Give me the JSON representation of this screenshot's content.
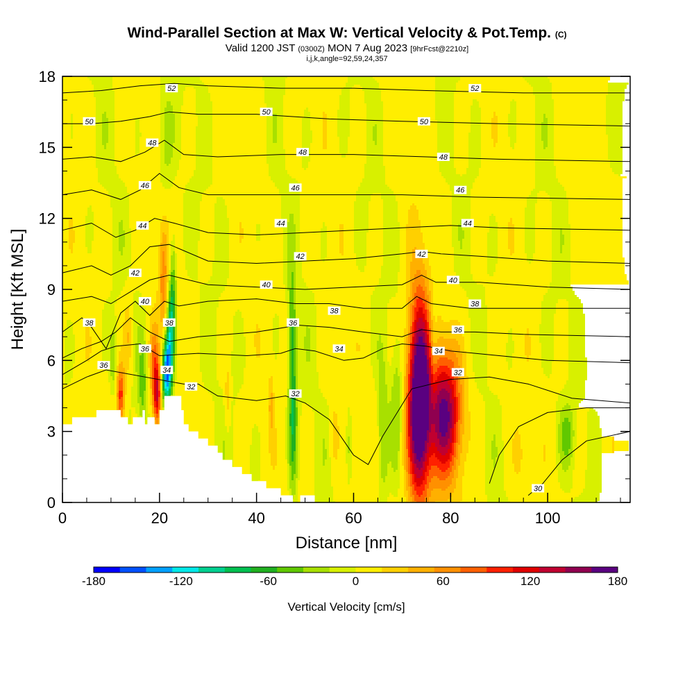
{
  "title": {
    "main": "Wind-Parallel Section at Max W: Vertical Velocity & Pot.Temp.",
    "main_mark": "(C)",
    "valid_prefix": "Valid 1200 JST",
    "valid_utc": "(0300Z)",
    "valid_date": "MON 7 Aug 2023",
    "forecast": "[9hrFcst@2210z]",
    "indices": "i,j,k,angle=92,59,24,357"
  },
  "colors": {
    "neg_deep": "#0000ff",
    "zero_band": "#ffee00",
    "pos_deep": "#5a0080",
    "terrain": "#ffffff",
    "contour": "#000000"
  },
  "chart_data": {
    "type": "heatmap",
    "xlabel": "Distance [nm]",
    "ylabel": "Height [Kft MSL]",
    "xlim": [
      0,
      117
    ],
    "ylim": [
      0,
      18
    ],
    "x_ticks": [
      0,
      20,
      40,
      60,
      80,
      100
    ],
    "y_ticks": [
      0,
      3,
      6,
      9,
      12,
      15,
      18
    ],
    "colorbar": {
      "title": "Vertical Velocity [cm/s]",
      "range": [
        -180,
        180
      ],
      "tick_labels": [
        "-180",
        "-120",
        "-60",
        "0",
        "60",
        "120",
        "180"
      ],
      "tick_values": [
        -180,
        -120,
        -60,
        0,
        60,
        120,
        180
      ],
      "colors": [
        "#0000ff",
        "#0050ff",
        "#00a0ff",
        "#00e8e8",
        "#00d090",
        "#00c050",
        "#20b020",
        "#60c800",
        "#a8e000",
        "#d8f000",
        "#ffee00",
        "#ffd000",
        "#ffb000",
        "#ff9000",
        "#ff6000",
        "#ff2000",
        "#e00000",
        "#c00030",
        "#900050",
        "#5a0080"
      ]
    },
    "w_features": [
      {
        "x": 73.5,
        "z": 4.5,
        "sx": 1.6,
        "sz": 3.2,
        "w": 185
      },
      {
        "x": 79,
        "z": 3.8,
        "sx": 2.2,
        "sz": 1.8,
        "w": 120
      },
      {
        "x": 75.5,
        "z": 3.5,
        "sx": 4.5,
        "sz": 2.4,
        "w": 55
      },
      {
        "x": 69,
        "z": 4.0,
        "sx": 1.0,
        "sz": 2.0,
        "w": -45
      },
      {
        "x": 66,
        "z": 3.0,
        "sx": 0.8,
        "sz": 2.2,
        "w": -40
      },
      {
        "x": 76.5,
        "z": 6.5,
        "sx": 0.6,
        "sz": 1.5,
        "w": -35
      },
      {
        "x": 21.5,
        "z": 5.5,
        "sx": 0.7,
        "sz": 1.0,
        "w": -150
      },
      {
        "x": 22.3,
        "z": 7.3,
        "sx": 0.6,
        "sz": 1.3,
        "w": -85
      },
      {
        "x": 22.8,
        "z": 9.5,
        "sx": 0.5,
        "sz": 1.5,
        "w": -45
      },
      {
        "x": 20.8,
        "z": 9.5,
        "sx": 0.7,
        "sz": 1.8,
        "w": 60
      },
      {
        "x": 19.5,
        "z": 4.5,
        "sx": 0.6,
        "sz": 1.0,
        "w": 120
      },
      {
        "x": 18.8,
        "z": 6.0,
        "sx": 0.7,
        "sz": 1.2,
        "w": 60
      },
      {
        "x": 16.5,
        "z": 5.0,
        "sx": 0.6,
        "sz": 1.2,
        "w": -40
      },
      {
        "x": 12,
        "z": 4.5,
        "sx": 0.6,
        "sz": 0.9,
        "w": 100
      },
      {
        "x": 13.5,
        "z": 7.0,
        "sx": 0.7,
        "sz": 1.2,
        "w": 40
      },
      {
        "x": 10.5,
        "z": 6.0,
        "sx": 0.5,
        "sz": 1.0,
        "w": -30
      },
      {
        "x": 47.5,
        "z": 4.0,
        "sx": 0.6,
        "sz": 2.5,
        "w": -70
      },
      {
        "x": 47.3,
        "z": 8.0,
        "sx": 0.5,
        "sz": 1.5,
        "w": -35
      },
      {
        "x": 43,
        "z": 4.2,
        "sx": 0.4,
        "sz": 1.0,
        "w": 35
      },
      {
        "x": 34,
        "z": 4.5,
        "sx": 0.4,
        "sz": 1.0,
        "w": 35
      },
      {
        "x": 56,
        "z": 2.8,
        "sx": 0.6,
        "sz": 1.0,
        "w": 30
      },
      {
        "x": 59,
        "z": 2.5,
        "sx": 0.5,
        "sz": 1.2,
        "w": -28
      },
      {
        "x": 104,
        "z": 2.8,
        "sx": 1.0,
        "sz": 0.8,
        "w": -40
      },
      {
        "x": 94,
        "z": 2.0,
        "sx": 0.8,
        "sz": 0.8,
        "w": 25
      },
      {
        "x": 21,
        "z": 15,
        "sx": 1.2,
        "sz": 2.0,
        "w": -25
      }
    ],
    "terrain_steps": [
      [
        0,
        3.3
      ],
      [
        2,
        3.6
      ],
      [
        7,
        3.9
      ],
      [
        11,
        3.9
      ],
      [
        12,
        3.6
      ],
      [
        13,
        3.6
      ],
      [
        13.5,
        3.3
      ],
      [
        14.5,
        3.6
      ],
      [
        15.5,
        3.6
      ],
      [
        16.5,
        3.9
      ],
      [
        17,
        3.3
      ],
      [
        17.5,
        3.6
      ],
      [
        18.5,
        3.6
      ],
      [
        19,
        3.3
      ],
      [
        20,
        3.9
      ],
      [
        21,
        4.5
      ],
      [
        23.5,
        4.5
      ],
      [
        24.5,
        3.9
      ],
      [
        25,
        3.3
      ],
      [
        26,
        3.0
      ],
      [
        27,
        3.0
      ],
      [
        28,
        2.7
      ],
      [
        29,
        2.7
      ],
      [
        30,
        2.4
      ],
      [
        32,
        2.1
      ],
      [
        33,
        1.8
      ],
      [
        34,
        1.8
      ],
      [
        35,
        1.5
      ],
      [
        37,
        1.2
      ],
      [
        38,
        1.2
      ],
      [
        39,
        0.9
      ],
      [
        42,
        0.6
      ],
      [
        45,
        0.3
      ],
      [
        47,
        0.3
      ],
      [
        47.5,
        0
      ],
      [
        49,
        0.3
      ],
      [
        52,
        0
      ],
      [
        115,
        0
      ],
      [
        117,
        0.3
      ]
    ],
    "contours": [
      {
        "label": "30",
        "points": [
          [
            88,
            0.8
          ],
          [
            90,
            2.0
          ],
          [
            94,
            3.2
          ],
          [
            100,
            3.8
          ],
          [
            108,
            4.0
          ],
          [
            117,
            4.0
          ]
        ]
      },
      {
        "label": "30",
        "points": [
          [
            96,
            0.3
          ],
          [
            99,
            0.8
          ],
          [
            103,
            1.8
          ],
          [
            108,
            2.6
          ],
          [
            117,
            3.0
          ]
        ]
      },
      {
        "label": "32",
        "points": [
          [
            0,
            4.8
          ],
          [
            5,
            5.3
          ],
          [
            9,
            5.6
          ],
          [
            25,
            5.0
          ],
          [
            28,
            5.0
          ],
          [
            32,
            4.5
          ],
          [
            40,
            4.3
          ],
          [
            46,
            4.5
          ],
          [
            50,
            4.2
          ],
          [
            55,
            3.5
          ],
          [
            60,
            2.0
          ],
          [
            63,
            1.6
          ],
          [
            66,
            2.8
          ],
          [
            72,
            4.8
          ],
          [
            80,
            5.2
          ],
          [
            88,
            5.3
          ],
          [
            96,
            5.0
          ],
          [
            105,
            4.4
          ],
          [
            117,
            4.2
          ]
        ]
      },
      {
        "label": "34",
        "points": [
          [
            0,
            5.4
          ],
          [
            5,
            6.0
          ],
          [
            8,
            6.4
          ],
          [
            11,
            6.6
          ],
          [
            16,
            6.7
          ],
          [
            20,
            6.2
          ],
          [
            28,
            6.3
          ],
          [
            38,
            6.2
          ],
          [
            45,
            6.3
          ],
          [
            48,
            6.5
          ],
          [
            52,
            6.4
          ],
          [
            58,
            6.0
          ],
          [
            62,
            6.1
          ],
          [
            66,
            6.5
          ],
          [
            70,
            6.7
          ],
          [
            75,
            6.6
          ],
          [
            80,
            6.4
          ],
          [
            90,
            6.2
          ],
          [
            100,
            6.0
          ],
          [
            117,
            5.9
          ]
        ]
      },
      {
        "label": "36",
        "points": [
          [
            0,
            6.1
          ],
          [
            4,
            6.5
          ],
          [
            8,
            6.8
          ],
          [
            11,
            7.2
          ],
          [
            14,
            7.8
          ],
          [
            18,
            7.2
          ],
          [
            22,
            6.8
          ],
          [
            28,
            7.0
          ],
          [
            40,
            7.2
          ],
          [
            46,
            7.4
          ],
          [
            48,
            7.5
          ],
          [
            55,
            7.4
          ],
          [
            62,
            7.2
          ],
          [
            70,
            7.0
          ],
          [
            74,
            7.3
          ],
          [
            78,
            7.2
          ],
          [
            85,
            7.2
          ],
          [
            95,
            7.1
          ],
          [
            117,
            7.0
          ]
        ]
      },
      {
        "label": "38",
        "points": [
          [
            0,
            7.2
          ],
          [
            4,
            7.8
          ],
          [
            6,
            7.4
          ],
          [
            9,
            6.5
          ],
          [
            12,
            8.0
          ],
          [
            15,
            8.5
          ],
          [
            18,
            7.9
          ],
          [
            21,
            8.5
          ],
          [
            24,
            8.3
          ],
          [
            30,
            8.5
          ],
          [
            40,
            8.6
          ],
          [
            48,
            8.4
          ],
          [
            55,
            8.4
          ],
          [
            62,
            8.2
          ],
          [
            70,
            8.2
          ],
          [
            73,
            8.7
          ],
          [
            76,
            8.4
          ],
          [
            84,
            8.2
          ],
          [
            95,
            8.2
          ],
          [
            117,
            8.2
          ]
        ]
      },
      {
        "label": "40",
        "points": [
          [
            0,
            8.5
          ],
          [
            6,
            8.7
          ],
          [
            10,
            8.4
          ],
          [
            14,
            8.9
          ],
          [
            18,
            9.4
          ],
          [
            22,
            9.6
          ],
          [
            30,
            9.2
          ],
          [
            40,
            9.1
          ],
          [
            50,
            9.0
          ],
          [
            60,
            9.1
          ],
          [
            70,
            9.2
          ],
          [
            74,
            9.6
          ],
          [
            77,
            9.3
          ],
          [
            86,
            9.3
          ],
          [
            100,
            9.1
          ],
          [
            117,
            9.0
          ]
        ]
      },
      {
        "label": "42",
        "points": [
          [
            0,
            9.7
          ],
          [
            6,
            10.0
          ],
          [
            10,
            9.6
          ],
          [
            14,
            10.0
          ],
          [
            18,
            10.8
          ],
          [
            22,
            10.9
          ],
          [
            30,
            10.2
          ],
          [
            40,
            10.1
          ],
          [
            50,
            10.2
          ],
          [
            60,
            10.3
          ],
          [
            70,
            10.5
          ],
          [
            74,
            10.6
          ],
          [
            78,
            10.5
          ],
          [
            86,
            10.4
          ],
          [
            100,
            10.2
          ],
          [
            117,
            10.1
          ]
        ]
      },
      {
        "label": "44",
        "points": [
          [
            0,
            11.5
          ],
          [
            6,
            11.8
          ],
          [
            11,
            11.2
          ],
          [
            15,
            11.5
          ],
          [
            19,
            12.0
          ],
          [
            23,
            11.8
          ],
          [
            30,
            11.4
          ],
          [
            40,
            11.3
          ],
          [
            50,
            11.4
          ],
          [
            60,
            11.5
          ],
          [
            70,
            11.6
          ],
          [
            80,
            11.7
          ],
          [
            90,
            11.6
          ],
          [
            117,
            11.5
          ]
        ]
      },
      {
        "label": "46",
        "points": [
          [
            0,
            13.0
          ],
          [
            6,
            13.2
          ],
          [
            12,
            12.8
          ],
          [
            16,
            13.2
          ],
          [
            20,
            13.9
          ],
          [
            24,
            13.3
          ],
          [
            30,
            13.0
          ],
          [
            45,
            13.0
          ],
          [
            55,
            13.0
          ],
          [
            70,
            13.0
          ],
          [
            85,
            12.9
          ],
          [
            117,
            12.8
          ]
        ]
      },
      {
        "label": "48",
        "points": [
          [
            0,
            14.5
          ],
          [
            6,
            14.6
          ],
          [
            12,
            14.4
          ],
          [
            17,
            14.8
          ],
          [
            21,
            15.3
          ],
          [
            25,
            14.7
          ],
          [
            32,
            14.6
          ],
          [
            45,
            14.7
          ],
          [
            60,
            14.7
          ],
          [
            75,
            14.6
          ],
          [
            90,
            14.5
          ],
          [
            117,
            14.4
          ]
        ]
      },
      {
        "label": "50",
        "points": [
          [
            0,
            16.0
          ],
          [
            6,
            16.0
          ],
          [
            12,
            16.1
          ],
          [
            18,
            16.3
          ],
          [
            22,
            16.5
          ],
          [
            28,
            16.4
          ],
          [
            40,
            16.4
          ],
          [
            55,
            16.2
          ],
          [
            70,
            16.1
          ],
          [
            90,
            16.0
          ],
          [
            117,
            15.9
          ]
        ]
      },
      {
        "label": "52",
        "points": [
          [
            0,
            17.3
          ],
          [
            8,
            17.4
          ],
          [
            16,
            17.6
          ],
          [
            23,
            17.7
          ],
          [
            30,
            17.6
          ],
          [
            45,
            17.5
          ],
          [
            60,
            17.5
          ],
          [
            75,
            17.4
          ],
          [
            95,
            17.3
          ],
          [
            117,
            17.3
          ]
        ]
      }
    ],
    "contour_labels": [
      {
        "text": "52",
        "x": 22.5,
        "z": 17.5
      },
      {
        "text": "52",
        "x": 85,
        "z": 17.5
      },
      {
        "text": "50",
        "x": 5.5,
        "z": 16.1
      },
      {
        "text": "50",
        "x": 42,
        "z": 16.5
      },
      {
        "text": "50",
        "x": 74.5,
        "z": 16.1
      },
      {
        "text": "48",
        "x": 18.5,
        "z": 15.2
      },
      {
        "text": "48",
        "x": 49.5,
        "z": 14.8
      },
      {
        "text": "48",
        "x": 78.5,
        "z": 14.6
      },
      {
        "text": "46",
        "x": 17,
        "z": 13.4
      },
      {
        "text": "46",
        "x": 48,
        "z": 13.3
      },
      {
        "text": "46",
        "x": 82,
        "z": 13.2
      },
      {
        "text": "44",
        "x": 16.5,
        "z": 11.7
      },
      {
        "text": "44",
        "x": 45,
        "z": 11.8
      },
      {
        "text": "44",
        "x": 83.5,
        "z": 11.8
      },
      {
        "text": "42",
        "x": 15,
        "z": 9.7
      },
      {
        "text": "42",
        "x": 49,
        "z": 10.4
      },
      {
        "text": "42",
        "x": 74,
        "z": 10.5
      },
      {
        "text": "40",
        "x": 17,
        "z": 8.5
      },
      {
        "text": "40",
        "x": 42,
        "z": 9.2
      },
      {
        "text": "40",
        "x": 80.5,
        "z": 9.4
      },
      {
        "text": "38",
        "x": 5.5,
        "z": 7.6
      },
      {
        "text": "38",
        "x": 22,
        "z": 7.6
      },
      {
        "text": "38",
        "x": 56,
        "z": 8.1
      },
      {
        "text": "38",
        "x": 85,
        "z": 8.4
      },
      {
        "text": "36",
        "x": 8.5,
        "z": 5.8
      },
      {
        "text": "36",
        "x": 17,
        "z": 6.5
      },
      {
        "text": "36",
        "x": 47.5,
        "z": 7.6
      },
      {
        "text": "36",
        "x": 81.5,
        "z": 7.3
      },
      {
        "text": "34",
        "x": 21.5,
        "z": 5.6
      },
      {
        "text": "34",
        "x": 57,
        "z": 6.5
      },
      {
        "text": "34",
        "x": 77.5,
        "z": 6.4
      },
      {
        "text": "32",
        "x": 26.5,
        "z": 4.9
      },
      {
        "text": "32",
        "x": 48,
        "z": 4.6
      },
      {
        "text": "32",
        "x": 81.5,
        "z": 5.5
      },
      {
        "text": "30",
        "x": 98,
        "z": 0.6
      }
    ]
  }
}
